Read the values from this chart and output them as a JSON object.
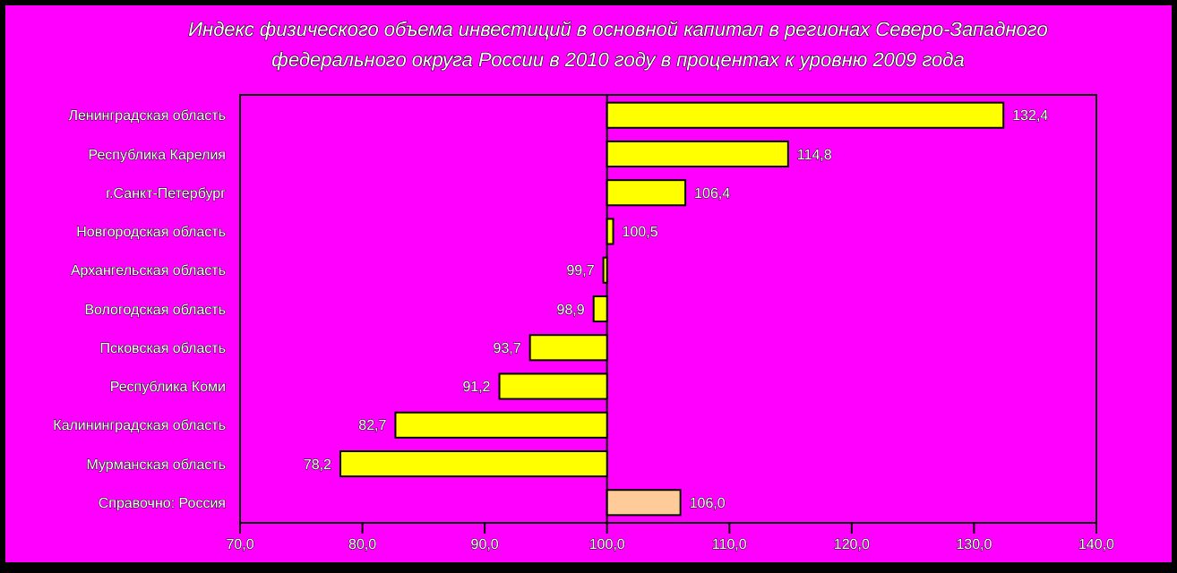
{
  "chart_data": {
    "type": "bar",
    "orientation": "horizontal",
    "title": "Индекс физического объема инвестиций в основной капитал в регионах Северо-Западного федерального округа России в 2010 году в процентах к уровню 2009 года",
    "categories": [
      "Ленинградская область",
      "Республика Карелия",
      "г.Санкт-Петербург",
      "Новгородская область",
      "Архангельская область",
      "Вологодская область",
      "Псковская область",
      "Республика Коми",
      "Калининградская область",
      "Мурманская область",
      "Справочно: Россия"
    ],
    "base": [
      100,
      100,
      100,
      100,
      100,
      100,
      100,
      100,
      100,
      100,
      100
    ],
    "values": [
      32.4,
      14.8,
      6.4,
      0.5,
      -0.3,
      -1.1,
      -6.3,
      -8.8,
      -17.3,
      -21.8,
      6.0
    ],
    "value_labels": [
      "132,4",
      "114,8",
      "106,4",
      "100,5",
      "99,7",
      "98,9",
      "93,7",
      "91,2",
      "82,7",
      "78,2",
      "106,0"
    ],
    "colors": [
      "#ffff00",
      "#ffff00",
      "#ffff00",
      "#ffff00",
      "#ffff00",
      "#ffff00",
      "#ffff00",
      "#ffff00",
      "#ffff00",
      "#ffff00",
      "#ffcc99"
    ],
    "xlim": [
      70,
      140
    ],
    "xticks": [
      {
        "value": 70,
        "label": "70,0"
      },
      {
        "value": 80,
        "label": "80,0"
      },
      {
        "value": 90,
        "label": "90,0"
      },
      {
        "value": 100,
        "label": "100,0"
      },
      {
        "value": 110,
        "label": "110,0"
      },
      {
        "value": 120,
        "label": "120,0"
      },
      {
        "value": 130,
        "label": "130,0"
      },
      {
        "value": 140,
        "label": "140,0"
      }
    ]
  }
}
